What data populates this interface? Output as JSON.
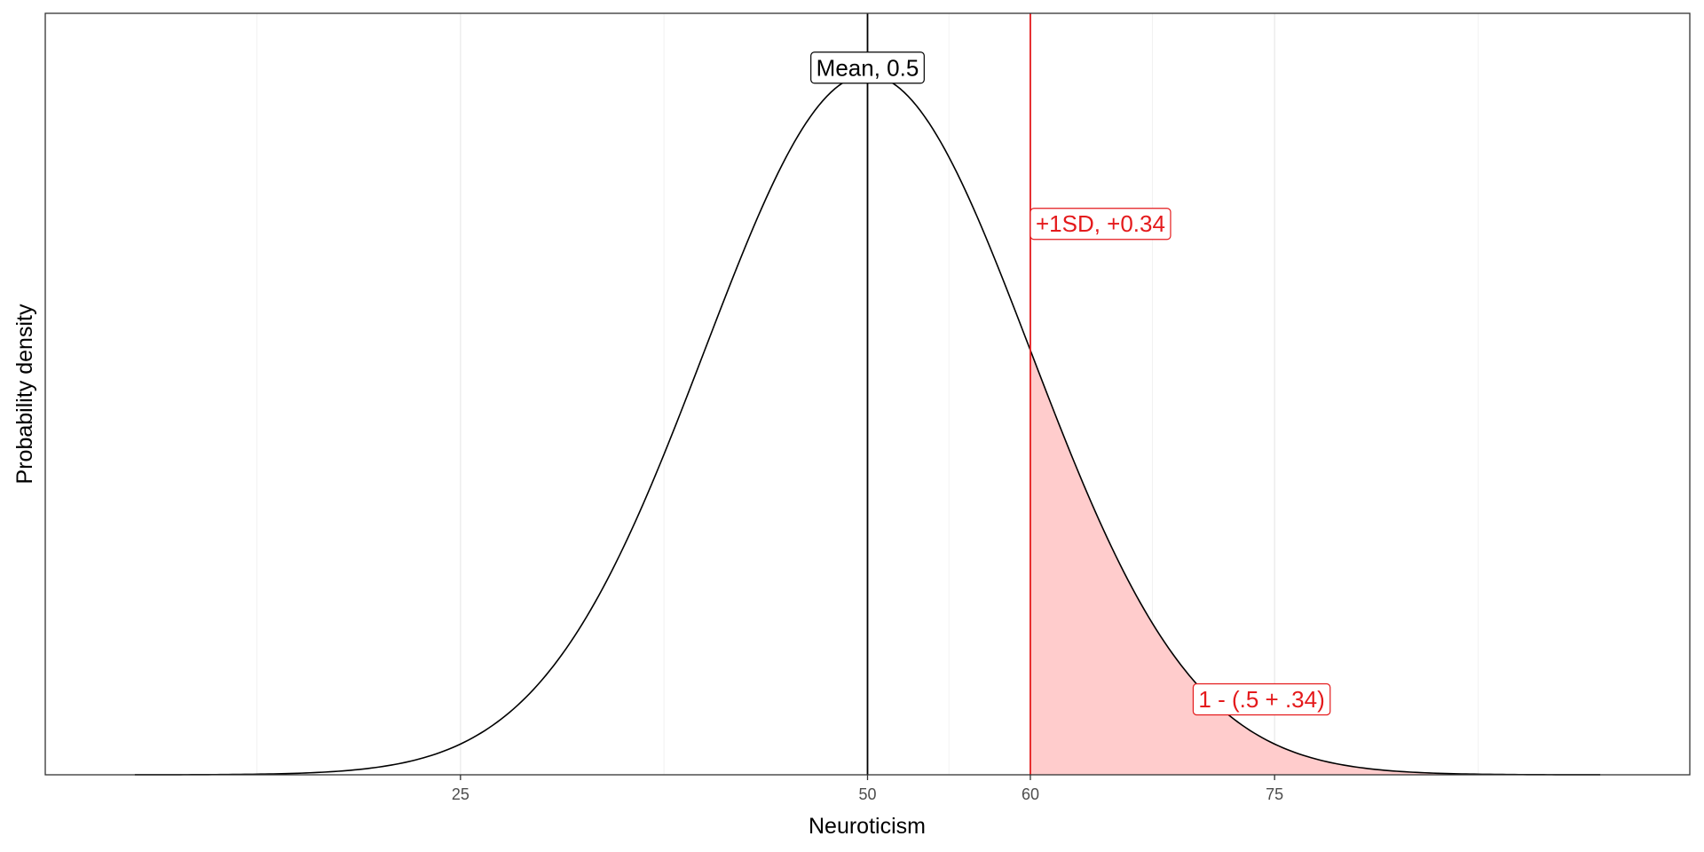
{
  "chart_data": {
    "type": "area",
    "title": "",
    "xlabel": "Neuroticism",
    "ylabel": "Probability density",
    "xlim": [
      -0.5,
      100.5
    ],
    "ylim": [
      0,
      0.0434
    ],
    "x_ticks": [
      25,
      50,
      60,
      75
    ],
    "minor_grid_x": [
      12.5,
      37.5,
      55,
      67.5,
      87.5
    ],
    "grid": true,
    "distribution": {
      "family": "normal",
      "mean": 50,
      "sd": 10,
      "x_range": [
        5,
        95
      ]
    },
    "shaded_region": {
      "from": 60,
      "to": 95,
      "color": "#ffcccc"
    },
    "vlines": [
      {
        "x": 50,
        "color": "#000000",
        "name": "mean-line"
      },
      {
        "x": 60,
        "color": "#e41a1c",
        "name": "plus-1sd-line"
      }
    ],
    "annotations": [
      {
        "text": "Mean, 0.5",
        "x": 50,
        "y": 0.0403,
        "anchor": "middle",
        "color": "#000000",
        "name": "mean"
      },
      {
        "text": "+1SD, +0.34",
        "x": 60,
        "y": 0.0314,
        "anchor": "start",
        "color": "#e41a1c",
        "name": "plus-1sd"
      },
      {
        "text": "1 - (.5 + .34)",
        "x": 70,
        "y": 0.0043,
        "anchor": "start",
        "color": "#e41a1c",
        "name": "tail"
      }
    ]
  }
}
